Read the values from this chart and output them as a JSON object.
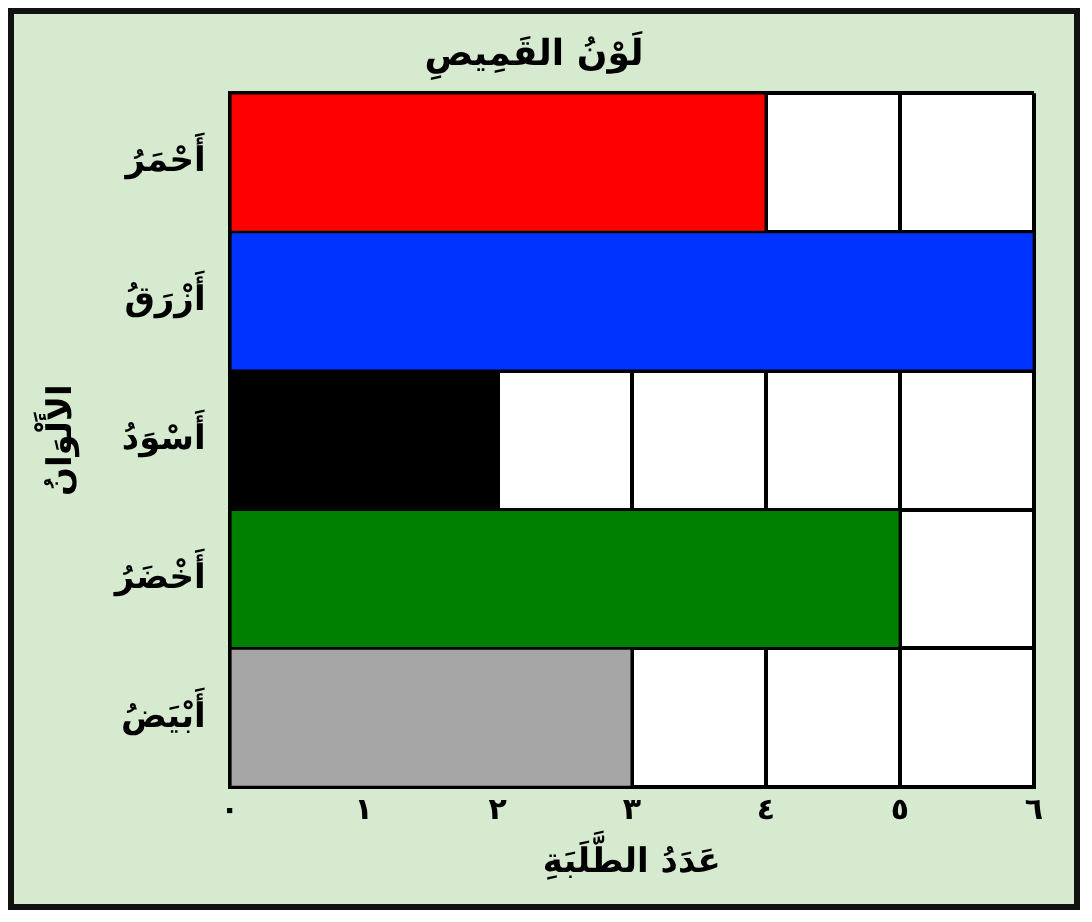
{
  "chart_data": {
    "type": "bar",
    "orientation": "horizontal",
    "title": "لَوْنُ القَمِيصِ",
    "xlabel": "عَدَدُ الطَّلَبَةِ",
    "ylabel": "الأَلْوَانُ",
    "categories": [
      "أَحْمَرُ",
      "أَزْرَقُ",
      "أَسْوَدُ",
      "أَخْضَرُ",
      "أَبْيَضُ"
    ],
    "values": [
      4,
      6,
      2,
      5,
      3
    ],
    "colors": [
      "#ff0000",
      "#0033ff",
      "#000000",
      "#008000",
      "#a6a6a6"
    ],
    "xlim": [
      0,
      6
    ],
    "xticks": [
      {
        "value": 0,
        "label": "٠"
      },
      {
        "value": 1,
        "label": "١"
      },
      {
        "value": 2,
        "label": "٢"
      },
      {
        "value": 3,
        "label": "٣"
      },
      {
        "value": 4,
        "label": "٤"
      },
      {
        "value": 5,
        "label": "٥"
      },
      {
        "value": 6,
        "label": "٦"
      }
    ],
    "grid": true,
    "legend": false
  }
}
